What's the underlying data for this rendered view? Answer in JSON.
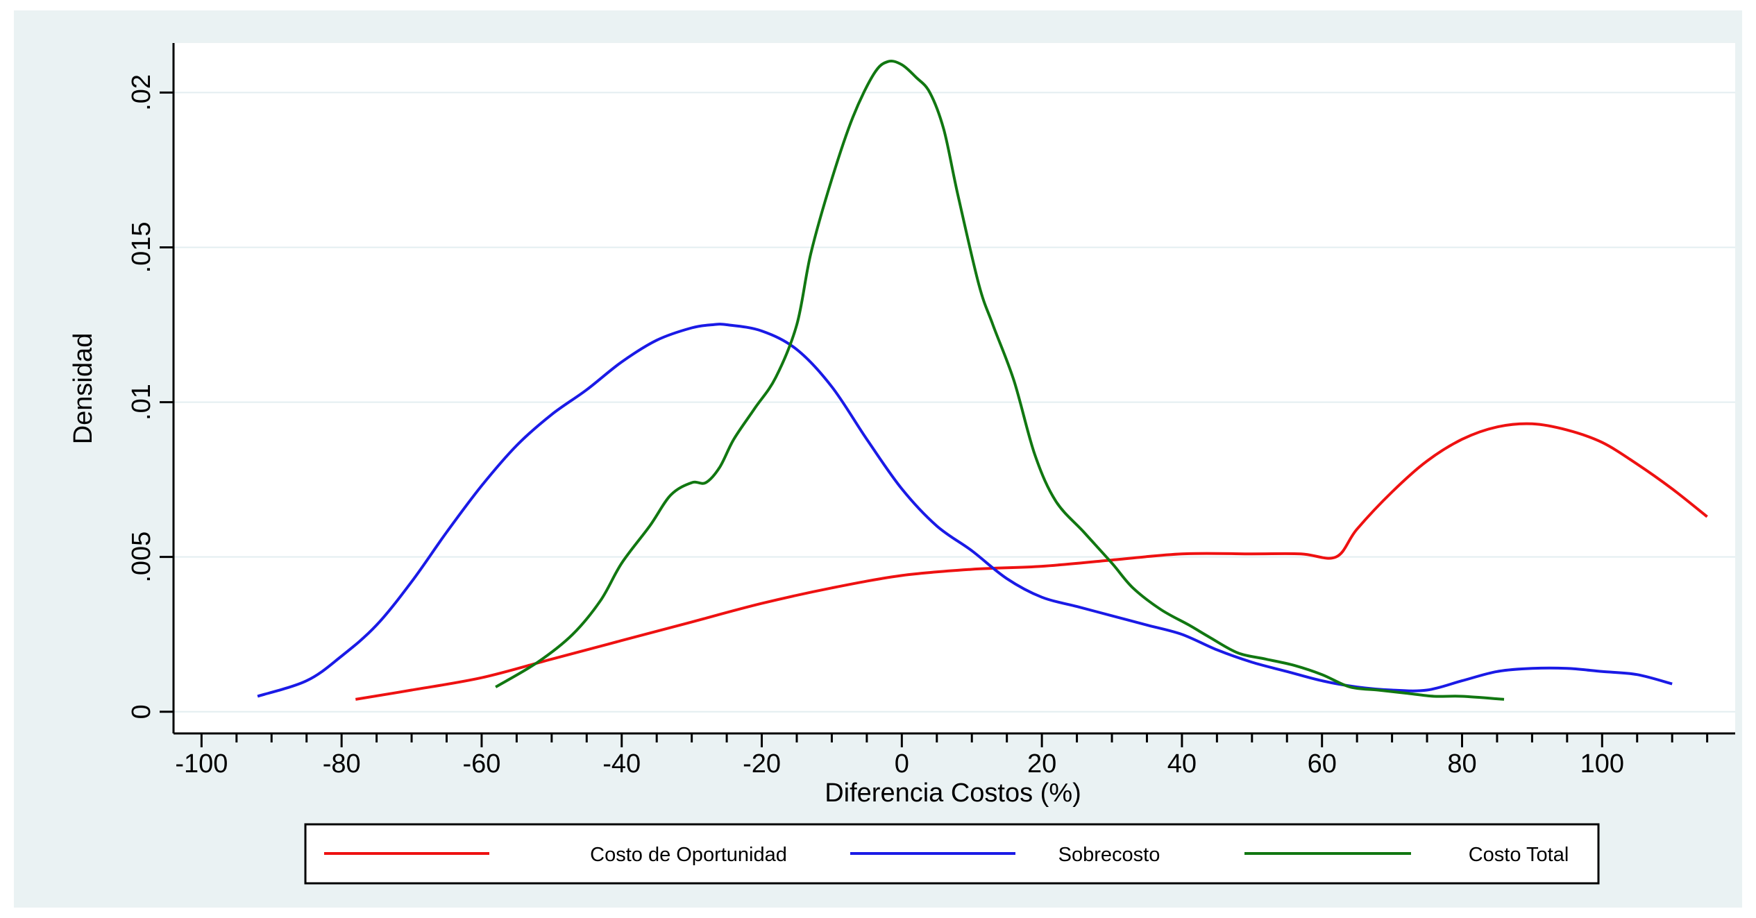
{
  "chart_data": {
    "type": "line",
    "xlabel": "Diferencia Costos  (%)",
    "ylabel": "Densidad",
    "xlim": [
      -104,
      119
    ],
    "ylim": [
      -0.0007,
      0.0216
    ],
    "xticks": [
      {
        "value": -100,
        "label": "-100"
      },
      {
        "value": -80,
        "label": "-80"
      },
      {
        "value": -60,
        "label": "-60"
      },
      {
        "value": -40,
        "label": "-40"
      },
      {
        "value": -20,
        "label": "-20"
      },
      {
        "value": 0,
        "label": "0"
      },
      {
        "value": 20,
        "label": "20"
      },
      {
        "value": 40,
        "label": "40"
      },
      {
        "value": 60,
        "label": "60"
      },
      {
        "value": 80,
        "label": "80"
      },
      {
        "value": 100,
        "label": "100"
      }
    ],
    "xminor_step": 5,
    "yticks": [
      {
        "value": 0,
        "label": "0"
      },
      {
        "value": 0.005,
        "label": ".005"
      },
      {
        "value": 0.01,
        "label": ".01"
      },
      {
        "value": 0.015,
        "label": ".015"
      },
      {
        "value": 0.02,
        "label": ".02"
      }
    ],
    "grid": "horizontal",
    "legend_position": "bottom",
    "series": [
      {
        "name": "Costo de Oportunidad",
        "color": "#ee1111",
        "x": [
          -78,
          -70,
          -60,
          -50,
          -40,
          -30,
          -20,
          -10,
          0,
          10,
          20,
          30,
          40,
          50,
          57,
          62,
          65,
          70,
          75,
          80,
          85,
          90,
          95,
          100,
          105,
          110,
          115
        ],
        "y": [
          0.0004,
          0.0007,
          0.0011,
          0.0017,
          0.0023,
          0.0029,
          0.0035,
          0.004,
          0.0044,
          0.0046,
          0.0047,
          0.0049,
          0.0051,
          0.0051,
          0.0051,
          0.005,
          0.0059,
          0.0071,
          0.0081,
          0.0088,
          0.0092,
          0.0093,
          0.0091,
          0.0087,
          0.008,
          0.0072,
          0.0063
        ]
      },
      {
        "name": "Sobrecosto",
        "color": "#1a1ae6",
        "x": [
          -92,
          -85,
          -80,
          -75,
          -70,
          -65,
          -60,
          -55,
          -50,
          -45,
          -40,
          -35,
          -30,
          -27,
          -25,
          -20,
          -15,
          -10,
          -5,
          0,
          5,
          10,
          15,
          20,
          25,
          30,
          35,
          40,
          45,
          50,
          55,
          60,
          65,
          70,
          75,
          80,
          85,
          90,
          95,
          100,
          105,
          110
        ],
        "y": [
          0.0005,
          0.001,
          0.0018,
          0.0028,
          0.0042,
          0.0058,
          0.0073,
          0.0086,
          0.0096,
          0.0104,
          0.0113,
          0.012,
          0.0124,
          0.0125,
          0.0125,
          0.0123,
          0.0117,
          0.0105,
          0.0088,
          0.0072,
          0.006,
          0.0052,
          0.0043,
          0.0037,
          0.0034,
          0.0031,
          0.0028,
          0.0025,
          0.002,
          0.0016,
          0.0013,
          0.001,
          0.0008,
          0.0007,
          0.0007,
          0.001,
          0.0013,
          0.0014,
          0.0014,
          0.0013,
          0.0012,
          0.0009
        ]
      },
      {
        "name": "Costo Total",
        "color": "#117711",
        "x": [
          -58,
          -52,
          -47,
          -43,
          -40,
          -36,
          -33,
          -30,
          -28,
          -26,
          -24,
          -21,
          -18,
          -15,
          -13,
          -10,
          -7,
          -4,
          -2,
          0,
          2,
          4,
          6,
          8,
          11,
          13,
          16,
          19,
          22,
          26,
          30,
          33,
          37,
          41,
          44,
          48,
          52,
          56,
          60,
          64,
          68,
          72,
          76,
          80,
          86
        ],
        "y": [
          0.0008,
          0.0016,
          0.0025,
          0.0036,
          0.0048,
          0.006,
          0.007,
          0.0074,
          0.0074,
          0.0079,
          0.0088,
          0.0098,
          0.0108,
          0.0125,
          0.0148,
          0.0172,
          0.0192,
          0.0206,
          0.021,
          0.0209,
          0.0205,
          0.02,
          0.0188,
          0.0167,
          0.0138,
          0.0125,
          0.0107,
          0.0083,
          0.0068,
          0.0058,
          0.0048,
          0.004,
          0.0033,
          0.0028,
          0.0024,
          0.0019,
          0.0017,
          0.0015,
          0.0012,
          0.0008,
          0.0007,
          0.0006,
          0.0005,
          0.0005,
          0.0004
        ]
      }
    ]
  }
}
